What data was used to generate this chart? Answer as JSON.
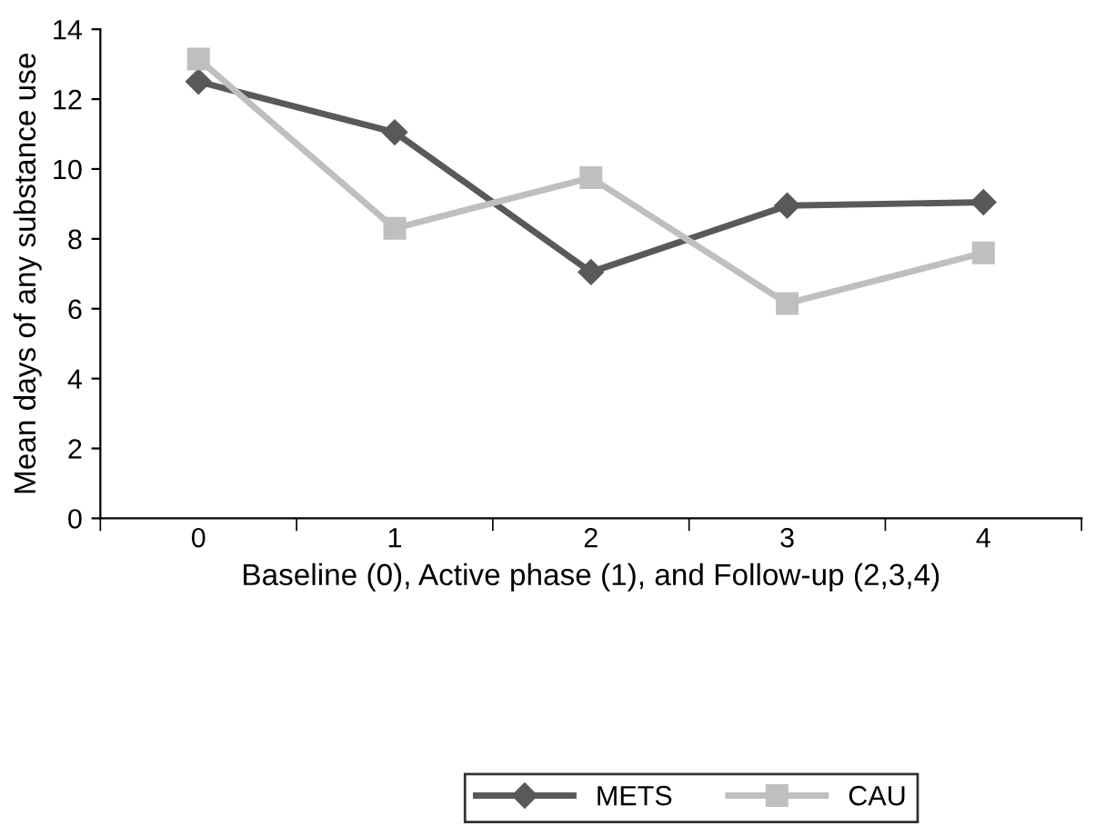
{
  "chart_data": {
    "type": "line",
    "ylabel": "Mean days of any substance use",
    "xlabel": "Baseline (0), Active phase (1), and Follow-up (2,3,4)",
    "categories": [
      "0",
      "1",
      "2",
      "3",
      "4"
    ],
    "series": [
      {
        "name": "METS",
        "color": "#595959",
        "marker": "diamond",
        "values": [
          12.5,
          11.05,
          7.05,
          8.95,
          9.05
        ]
      },
      {
        "name": "CAU",
        "color": "#bfbfbf",
        "marker": "square",
        "values": [
          13.15,
          8.3,
          9.75,
          6.15,
          7.6
        ]
      }
    ],
    "ylim": [
      0,
      14
    ],
    "yticks": [
      0,
      2,
      4,
      6,
      8,
      10,
      12,
      14
    ],
    "grid": false,
    "legend": "bottom"
  }
}
